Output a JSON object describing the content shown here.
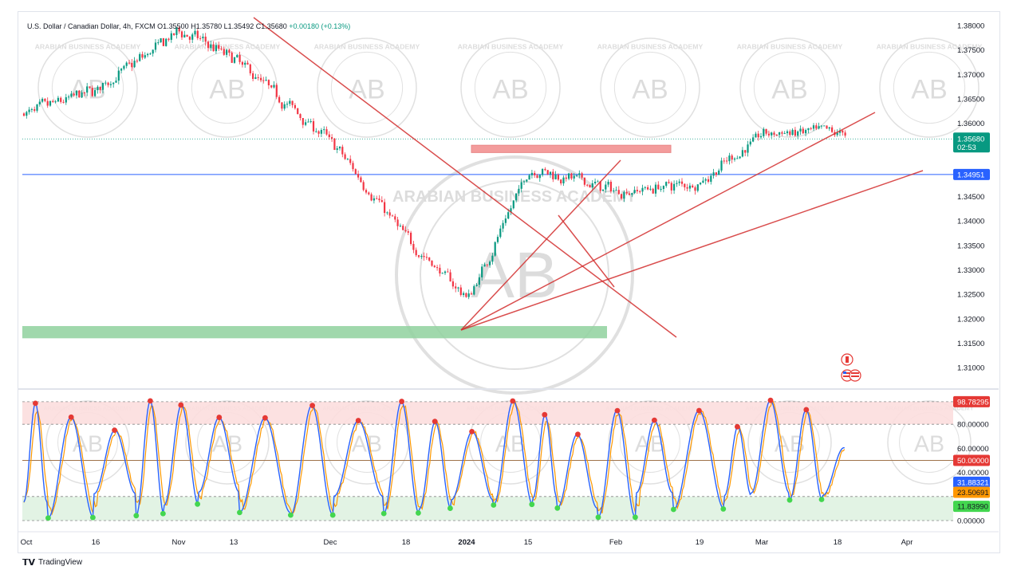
{
  "header": {
    "symbol": "U.S. Dollar / Canadian Dollar, 4h, FXCM",
    "ohlc": "O1.35500 H1.35780 L1.35492 C1.35680",
    "change": "+0.00180 (+0.13%)"
  },
  "price_axis": {
    "ticks": [
      "1.38000",
      "1.37500",
      "1.37000",
      "1.36500",
      "1.36000",
      "1.35500",
      "1.35000",
      "1.34500",
      "1.34000",
      "1.33500",
      "1.33000",
      "1.32500",
      "1.32000",
      "1.31500",
      "1.31000"
    ],
    "current_price_label": "1.35680",
    "countdown": "02:53",
    "horizontal_line_label": "1.34951"
  },
  "osc_axis": {
    "ticks": [
      "80.00000",
      "60.00000",
      "40.00000",
      "0.00000"
    ],
    "labels": [
      "98.78295",
      "50.00000",
      "31.88321",
      "23.50691",
      "11.83990"
    ]
  },
  "time_axis": {
    "labels": [
      "Oct",
      "16",
      "Nov",
      "13",
      "Dec",
      "18",
      "2024",
      "15",
      "Feb",
      "19",
      "Mar",
      "18",
      "Apr"
    ]
  },
  "watermark": {
    "text": "ARABIAN BUSINESS ACADEMY",
    "initials": "AB"
  },
  "colors": {
    "up": "#089981",
    "down": "#f23645",
    "trendline": "#d32f2f",
    "hline": "#2962ff",
    "k_line": "#2962ff",
    "d_line": "#ff9800",
    "resistance_zone": "#f28b8b",
    "support_zone": "#8fd19e"
  },
  "footer": {
    "brand": "TradingView"
  },
  "chart_data": [
    {
      "type": "candlestick",
      "title": "U.S. Dollar / Canadian Dollar, 4h, FXCM",
      "x": [
        "Oct",
        "16",
        "Nov",
        "13",
        "Dec",
        "18",
        "2024",
        "15",
        "Feb",
        "19",
        "Mar",
        "18",
        "Apr"
      ],
      "close_path": [
        [
          "Oct",
          1.362
        ],
        [
          "16",
          1.367
        ],
        [
          "Nov",
          1.379
        ],
        [
          "13",
          1.373
        ],
        [
          "Dec",
          1.356
        ],
        [
          "18",
          1.336
        ],
        [
          "2024",
          1.324
        ],
        [
          "15",
          1.351
        ],
        [
          "Feb",
          1.346
        ],
        [
          "19",
          1.348
        ],
        [
          "Mar",
          1.358
        ],
        [
          "18",
          1.3568
        ]
      ],
      "current_close": 1.3568,
      "horizontal_line": 1.34951,
      "resistance_zone": [
        1.354,
        1.3555
      ],
      "support_zone": [
        1.316,
        1.3185
      ],
      "ylim": [
        1.305,
        1.381
      ]
    },
    {
      "type": "line",
      "title": "Stochastic oscillator",
      "series": [],
      "levels": [
        80,
        50,
        20,
        0
      ],
      "last_values": [
        98.78295,
        50.0,
        31.88321,
        23.50691,
        11.8399
      ],
      "ylim": [
        0,
        100
      ]
    }
  ]
}
